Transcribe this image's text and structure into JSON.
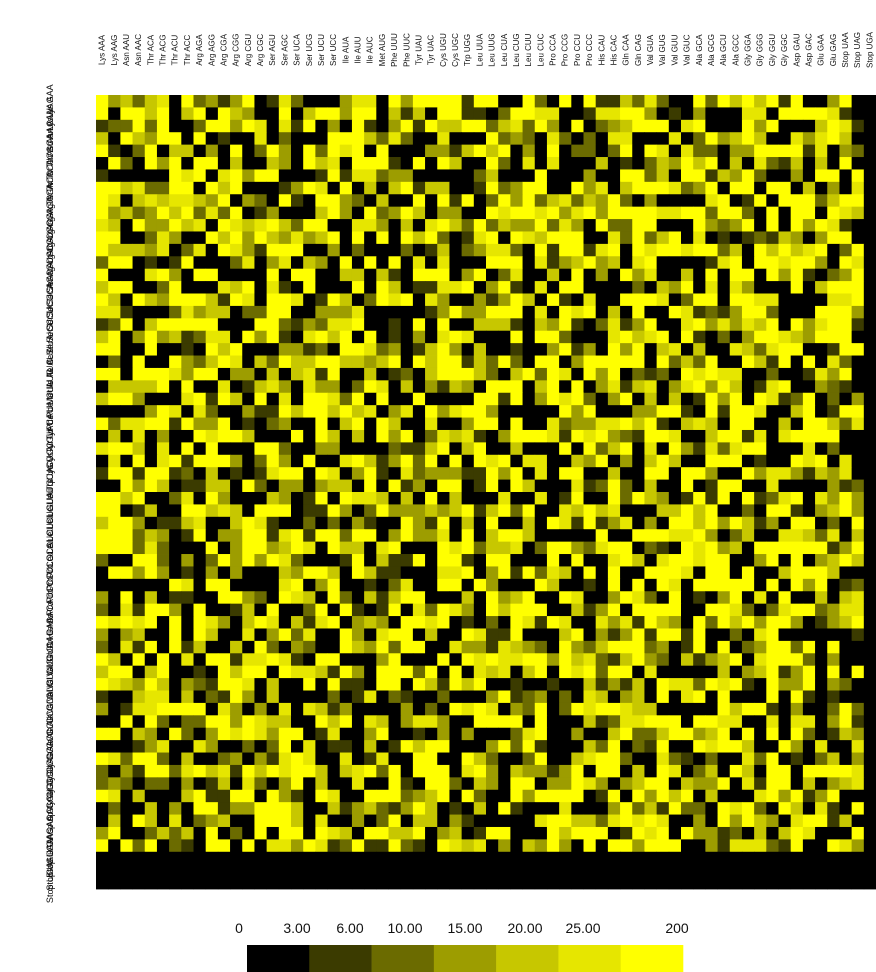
{
  "chart_data": {
    "type": "heatmap",
    "title": "",
    "xlabel": "",
    "ylabel": "",
    "row_labels": [
      "Lys AAA",
      "Lys AAG",
      "Asn AAU",
      "Asn AAC",
      "Thr ACA",
      "Thr ACG",
      "Thr ACU",
      "Thr ACC",
      "Arg AGA",
      "Arg AGG",
      "Arg CGA",
      "Arg CGG",
      "Arg CGU",
      "Arg CGC",
      "Ser AGU",
      "Ser AGC",
      "Ser UCA",
      "Ser UCG",
      "Ser UCU",
      "Ser UCC",
      "Ile AUA",
      "Ile AUU",
      "Ile AUC",
      "Met AUG",
      "Phe UUU",
      "Phe UUC",
      "Tyr UAU",
      "Tyr UAC",
      "Cys UGU",
      "Cys UGC",
      "Trp UGG",
      "Leu UUA",
      "Leu UUG",
      "Leu CUA",
      "Leu CUG",
      "Leu CUU",
      "Leu CUC",
      "Pro CCA",
      "Pro CCG",
      "Pro CCU",
      "Pro CCC",
      "His CAU",
      "His CAC",
      "Gln CAA",
      "Gln CAG",
      "Val GUA",
      "Val GUG",
      "Val GUU",
      "Val GUC",
      "Ala GCA",
      "Ala GCG",
      "Ala GCU",
      "Ala GCC",
      "Gly GGA",
      "Gly GGG",
      "Gly GGU",
      "Gly GGC",
      "Asp GAU",
      "Asp GAC",
      "Glu GAA",
      "Glu GAG",
      "Stop UAA",
      "Stop UAG",
      "Stop UGA"
    ],
    "column_labels": "same 64 codon labels as row_labels (illegible in the image)",
    "legend": {
      "placement": "bottom-center",
      "ticks": [
        "0",
        "3.00",
        "6.00",
        "10.00",
        "15.00",
        "20.00",
        "25.00",
        "200"
      ],
      "colors": [
        "#000000",
        "#3b3b00",
        "#6b6b00",
        "#9d9d00",
        "#c7c700",
        "#e6e600",
        "#ffff00"
      ]
    },
    "bottom_rows_value": 0,
    "right_column_value": 0
  }
}
